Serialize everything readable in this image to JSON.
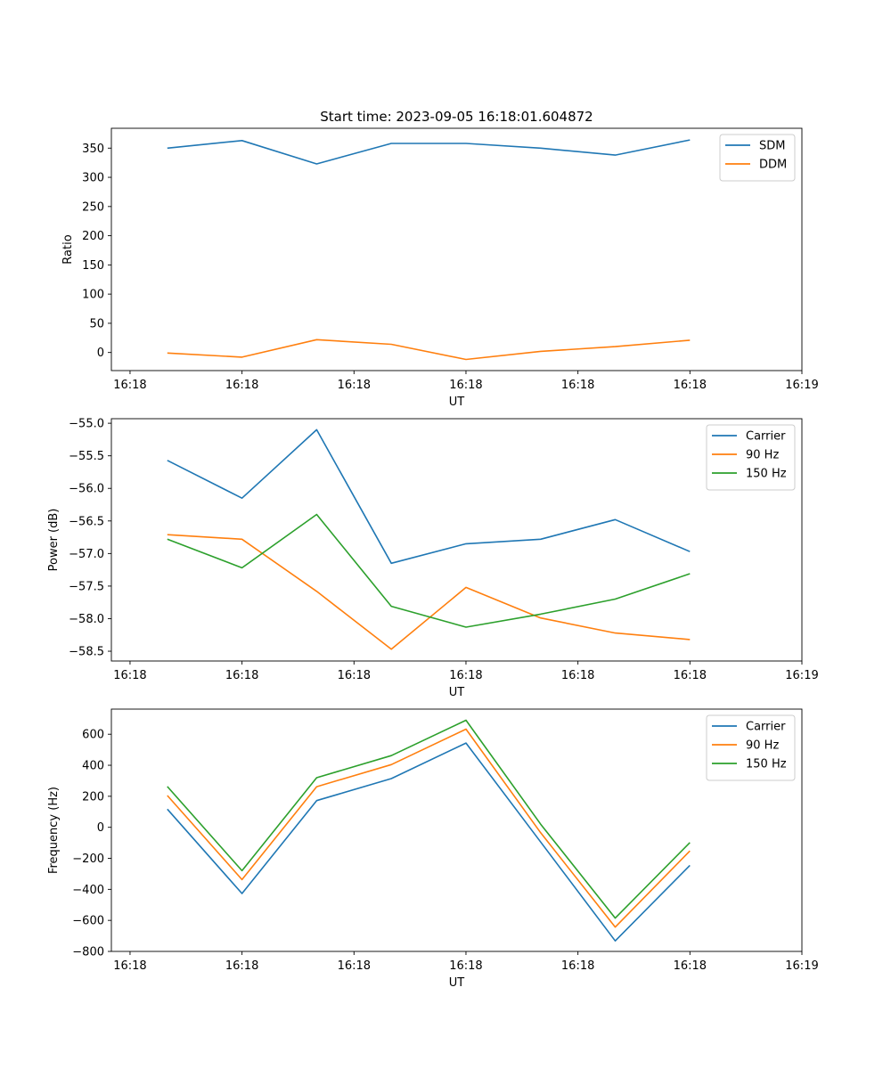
{
  "title": "Start time: 2023-09-05 16:18:01.604872",
  "colors": {
    "blue": "#1f77b4",
    "orange": "#ff7f0e",
    "green": "#2ca02c"
  },
  "chart_data": [
    {
      "type": "line",
      "name": "ratio",
      "title": "Start time: 2023-09-05 16:18:01.604872",
      "xlabel": "UT",
      "ylabel": "Ratio",
      "x": [
        1,
        2,
        3,
        4,
        5,
        6,
        7,
        8
      ],
      "xlim": [
        0.25,
        9.5
      ],
      "xticks": [
        0.5,
        2,
        3.5,
        5,
        6.5,
        8,
        9.5
      ],
      "xtick_labels": [
        "16:18",
        "16:18",
        "16:18",
        "16:18",
        "16:18",
        "16:18",
        "16:19"
      ],
      "ylim": [
        -31,
        384
      ],
      "yticks": [
        0,
        50,
        100,
        150,
        200,
        250,
        300,
        350
      ],
      "ytick_labels": [
        "0",
        "50",
        "100",
        "150",
        "200",
        "250",
        "300",
        "350"
      ],
      "legend": "top-right",
      "series": [
        {
          "name": "SDM",
          "color": "#1f77b4",
          "values": [
            350,
            363,
            323,
            358,
            358,
            350,
            338,
            364
          ]
        },
        {
          "name": "DDM",
          "color": "#ff7f0e",
          "values": [
            -1,
            -8,
            22,
            14,
            -12,
            2,
            10,
            21
          ]
        }
      ]
    },
    {
      "type": "line",
      "name": "power",
      "title": "",
      "xlabel": "UT",
      "ylabel": "Power (dB)",
      "x": [
        1,
        2,
        3,
        4,
        5,
        6,
        7,
        8
      ],
      "xlim": [
        0.25,
        9.5
      ],
      "xticks": [
        0.5,
        2,
        3.5,
        5,
        6.5,
        8,
        9.5
      ],
      "xtick_labels": [
        "16:18",
        "16:18",
        "16:18",
        "16:18",
        "16:18",
        "16:18",
        "16:19"
      ],
      "ylim": [
        -58.65,
        -54.93
      ],
      "yticks": [
        -58.5,
        -58.0,
        -57.5,
        -57.0,
        -56.5,
        -56.0,
        -55.5,
        -55.0
      ],
      "ytick_labels": [
        "−58.5",
        "−58.0",
        "−57.5",
        "−57.0",
        "−56.5",
        "−56.0",
        "−55.5",
        "−55.0"
      ],
      "legend": "top-right",
      "series": [
        {
          "name": "Carrier",
          "color": "#1f77b4",
          "values": [
            -55.57,
            -56.15,
            -55.1,
            -57.15,
            -56.85,
            -56.78,
            -56.48,
            -56.97
          ]
        },
        {
          "name": "90 Hz",
          "color": "#ff7f0e",
          "values": [
            -56.71,
            -56.78,
            -57.58,
            -58.47,
            -57.52,
            -57.99,
            -58.22,
            -58.32
          ]
        },
        {
          "name": "150 Hz",
          "color": "#2ca02c",
          "values": [
            -56.78,
            -57.22,
            -56.4,
            -57.81,
            -58.13,
            -57.93,
            -57.7,
            -57.31
          ]
        }
      ]
    },
    {
      "type": "line",
      "name": "frequency",
      "title": "",
      "xlabel": "UT",
      "ylabel": "Frequency (Hz)",
      "x": [
        1,
        2,
        3,
        4,
        5,
        6,
        7,
        8
      ],
      "xlim": [
        0.25,
        9.5
      ],
      "xticks": [
        0.5,
        2,
        3.5,
        5,
        6.5,
        8,
        9.5
      ],
      "xtick_labels": [
        "16:18",
        "16:18",
        "16:18",
        "16:18",
        "16:18",
        "16:18",
        "16:19"
      ],
      "ylim": [
        -800,
        762
      ],
      "yticks": [
        -800,
        -600,
        -400,
        -200,
        0,
        200,
        400,
        600
      ],
      "ytick_labels": [
        "−800",
        "−600",
        "−400",
        "−200",
        "0",
        "200",
        "400",
        "600"
      ],
      "legend": "top-right",
      "series": [
        {
          "name": "Carrier",
          "color": "#1f77b4",
          "values": [
            117,
            -427,
            172,
            314,
            543,
            -95,
            -732,
            -245
          ]
        },
        {
          "name": "90 Hz",
          "color": "#ff7f0e",
          "values": [
            205,
            -337,
            262,
            404,
            633,
            -35,
            -643,
            -152
          ]
        },
        {
          "name": "150 Hz",
          "color": "#2ca02c",
          "values": [
            263,
            -280,
            320,
            462,
            690,
            20,
            -585,
            -98
          ]
        }
      ]
    }
  ]
}
